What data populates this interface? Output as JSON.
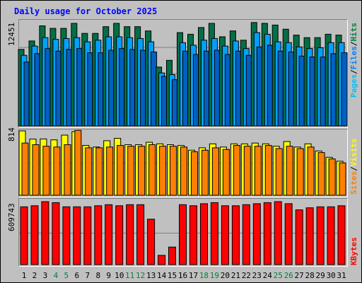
{
  "title": "Daily usage for October 2025",
  "colors": {
    "hits": "#006f46",
    "files": "#00a0ff",
    "pages": "#00a0ff",
    "visits": "#ffff00",
    "sites": "#ff8000",
    "kbytes": "#ff0000",
    "title": "#0000ff",
    "weekend_label": "#008040",
    "weekday_label": "#000000",
    "legend_hits": "#008040",
    "legend_files": "#0080ff",
    "legend_pages": "#00c0ff",
    "legend_visits": "#ffff00",
    "legend_sites": "#ff8000",
    "legend_kbytes": "#ff0000",
    "background": "#c0c0c0"
  },
  "legend": {
    "top": {
      "pages": "Pages",
      "sep1": "/",
      "files": "Files",
      "sep2": "/",
      "hits": "Hits"
    },
    "middle": {
      "sites": "Sites",
      "sep1": "/",
      "visits": "Visits"
    },
    "bottom": {
      "kbytes": "KBytes"
    }
  },
  "max_labels": {
    "hits": "12451",
    "visits": "814",
    "kbytes": "609743"
  },
  "chart_data": [
    {
      "type": "bar",
      "title": "Daily usage for October 2025",
      "categories": [
        "1",
        "2",
        "3",
        "4",
        "5",
        "6",
        "7",
        "8",
        "9",
        "10",
        "11",
        "12",
        "13",
        "14",
        "15",
        "16",
        "17",
        "18",
        "19",
        "20",
        "21",
        "22",
        "23",
        "24",
        "25",
        "26",
        "27",
        "28",
        "29",
        "30",
        "31"
      ],
      "weekend_days": [
        "4",
        "5",
        "11",
        "12",
        "18",
        "19",
        "25",
        "26"
      ],
      "ylim": [
        0,
        12451
      ],
      "series": [
        {
          "name": "Hits",
          "values": [
            9100,
            10100,
            11900,
            11600,
            11600,
            12200,
            11000,
            11000,
            11800,
            12200,
            11800,
            11800,
            11300,
            7000,
            7800,
            11100,
            10900,
            11700,
            12200,
            10600,
            11300,
            10200,
            12300,
            12200,
            12000,
            11500,
            10800,
            10500,
            10500,
            10900,
            10800
          ]
        },
        {
          "name": "Files",
          "values": [
            8400,
            9500,
            10500,
            10300,
            10400,
            10500,
            10000,
            10200,
            10600,
            10600,
            10500,
            10400,
            10000,
            6300,
            6100,
            9900,
            9600,
            10200,
            10400,
            9500,
            10100,
            9200,
            11100,
            10900,
            10000,
            9900,
            9400,
            9200,
            9300,
            9900,
            9900
          ]
        },
        {
          "name": "Pages",
          "values": [
            7600,
            8600,
            9200,
            8900,
            9100,
            9200,
            8700,
            8700,
            9000,
            9200,
            9100,
            9000,
            8800,
            5900,
            5500,
            8900,
            8500,
            8900,
            9000,
            8500,
            8900,
            8400,
            9400,
            9600,
            8900,
            8800,
            8300,
            8200,
            8200,
            8600,
            8700
          ]
        }
      ]
    },
    {
      "type": "bar",
      "categories": [
        "1",
        "2",
        "3",
        "4",
        "5",
        "6",
        "7",
        "8",
        "9",
        "10",
        "11",
        "12",
        "13",
        "14",
        "15",
        "16",
        "17",
        "18",
        "19",
        "20",
        "21",
        "22",
        "23",
        "24",
        "25",
        "26",
        "27",
        "28",
        "29",
        "30",
        "31"
      ],
      "ylim": [
        0,
        814
      ],
      "series": [
        {
          "name": "Visits",
          "values": [
            814,
            710,
            712,
            700,
            760,
            805,
            630,
            610,
            690,
            720,
            640,
            640,
            670,
            650,
            640,
            630,
            570,
            600,
            650,
            610,
            650,
            650,
            660,
            650,
            620,
            680,
            610,
            650,
            560,
            480,
            430
          ]
        },
        {
          "name": "Sites",
          "values": [
            660,
            640,
            620,
            610,
            640,
            820,
            600,
            600,
            610,
            630,
            620,
            620,
            640,
            620,
            620,
            610,
            550,
            570,
            600,
            580,
            630,
            620,
            620,
            630,
            590,
            620,
            590,
            610,
            540,
            460,
            410
          ]
        }
      ]
    },
    {
      "type": "bar",
      "categories": [
        "1",
        "2",
        "3",
        "4",
        "5",
        "6",
        "7",
        "8",
        "9",
        "10",
        "11",
        "12",
        "13",
        "14",
        "15",
        "16",
        "17",
        "18",
        "19",
        "20",
        "21",
        "22",
        "23",
        "24",
        "25",
        "26",
        "27",
        "28",
        "29",
        "30",
        "31"
      ],
      "ylim": [
        0,
        609743
      ],
      "series": [
        {
          "name": "KBytes",
          "values": [
            560000,
            570000,
            609743,
            600000,
            560000,
            560000,
            560000,
            570000,
            580000,
            570000,
            580000,
            580000,
            440000,
            90000,
            170000,
            580000,
            570000,
            590000,
            600000,
            570000,
            570000,
            580000,
            590000,
            600000,
            609743,
            590000,
            530000,
            550000,
            560000,
            560000,
            570000
          ]
        }
      ]
    }
  ]
}
